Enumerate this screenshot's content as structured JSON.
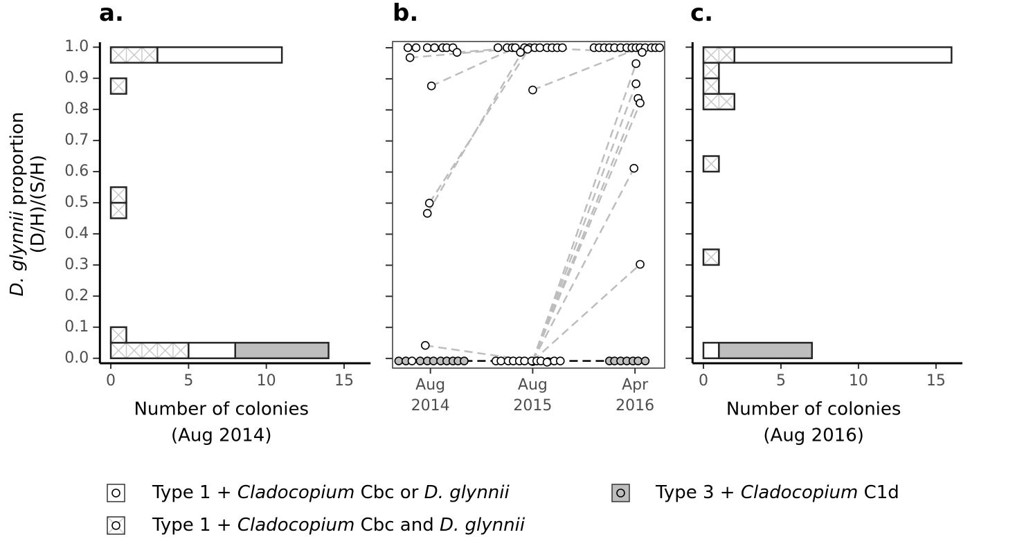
{
  "chart_data": [
    {
      "type": "stacked-histogram",
      "orientation": "horizontal",
      "panel_label": "a.",
      "y_label": [
        [
          {
            "text": "D. glynnii",
            "italic": true
          },
          {
            "text": " proportion"
          }
        ],
        [
          {
            "text": "(D/H)/(S/H)"
          }
        ]
      ],
      "x_label": [
        "Number of colonies",
        "(Aug 2014)"
      ],
      "bins": [
        0,
        0.05,
        0.1,
        0.15,
        0.2,
        0.25,
        0.3,
        0.35,
        0.4,
        0.45,
        0.5,
        0.55,
        0.6,
        0.65,
        0.7,
        0.75,
        0.8,
        0.85,
        0.9,
        0.95,
        1.0
      ],
      "series": [
        {
          "color": "#ffffff",
          "pattern": "crosshatch",
          "values": [
            5,
            1,
            0,
            0,
            0,
            0,
            0,
            0,
            0,
            1,
            1,
            0,
            0,
            0,
            0,
            0,
            0,
            1,
            0,
            3
          ]
        },
        {
          "color": "#ffffff",
          "values": [
            3,
            0,
            0,
            0,
            0,
            0,
            0,
            0,
            0,
            0,
            0,
            0,
            0,
            0,
            0,
            0,
            0,
            0,
            0,
            8
          ]
        },
        {
          "color": "#bebebe",
          "values": [
            6,
            0,
            0,
            0,
            0,
            0,
            0,
            0,
            0,
            0,
            0,
            0,
            0,
            0,
            0,
            0,
            0,
            0,
            0,
            0
          ]
        }
      ],
      "xlim": [
        -0.7,
        16.7
      ],
      "xticks": [
        0,
        5,
        10,
        15
      ],
      "ylim": [
        -0.016,
        1.016
      ],
      "yticks": [
        {
          "value": 0,
          "label": "0.0"
        },
        {
          "value": 0.1,
          "label": "0.1"
        },
        {
          "value": 0.2,
          "label": "0.2"
        },
        {
          "value": 0.3,
          "label": "0.3"
        },
        {
          "value": 0.4,
          "label": "0.4"
        },
        {
          "value": 0.5,
          "label": "0.5"
        },
        {
          "value": 0.6,
          "label": "0.6"
        },
        {
          "value": 0.7,
          "label": "0.7"
        },
        {
          "value": 0.8,
          "label": "0.8"
        },
        {
          "value": 0.9,
          "label": "0.9"
        },
        {
          "value": 1.0,
          "label": "1.0"
        }
      ]
    },
    {
      "type": "scatter",
      "panel_label": "b.",
      "xlim": [
        -0.37,
        2.29
      ],
      "xticks": [
        {
          "value": 0,
          "label": [
            "Aug",
            "2014"
          ]
        },
        {
          "value": 1,
          "label": [
            "Aug",
            "2015"
          ]
        },
        {
          "value": 2,
          "label": [
            "Apr",
            "2016"
          ]
        }
      ],
      "ylim": [
        -0.031,
        1.02
      ],
      "yticks": [
        0,
        0.1,
        0.2,
        0.3,
        0.4,
        0.5,
        0.6,
        0.7,
        0.8,
        0.9,
        1.0
      ],
      "connections": [
        {
          "color": "#bdbdbd",
          "x": [
            0.01,
            0.83
          ],
          "values": [
            0.877,
            1.0
          ]
        },
        {
          "color": "#bdbdbd",
          "x": [
            -0.03,
            0.92
          ],
          "values": [
            0.467,
            1.0
          ]
        },
        {
          "color": "#bdbdbd",
          "x": [
            -0.01,
            0.97
          ],
          "values": [
            0.5,
            1.0
          ]
        },
        {
          "color": "#bdbdbd",
          "x": [
            -0.2,
            0.92
          ],
          "values": [
            0.968,
            1.0
          ]
        },
        {
          "color": "#bdbdbd",
          "x": [
            0.26,
            0.83
          ],
          "values": [
            0.985,
            1.0
          ]
        },
        {
          "color": "#bdbdbd",
          "x": [
            -0.05,
            1.0
          ],
          "values": [
            0.042,
            -0.008
          ]
        },
        {
          "color": "#bdbdbd",
          "x": [
            1.0,
            2.05
          ],
          "values": [
            0.864,
            1.0
          ]
        },
        {
          "color": "#bdbdbd",
          "x": [
            1.0,
            2.01
          ],
          "values": [
            -0.008,
            0.949
          ]
        },
        {
          "color": "#bdbdbd",
          "x": [
            1.0,
            2.01
          ],
          "values": [
            -0.008,
            0.884
          ]
        },
        {
          "color": "#bdbdbd",
          "x": [
            1.0,
            2.03
          ],
          "values": [
            -0.008,
            0.837
          ]
        },
        {
          "color": "#bdbdbd",
          "x": [
            1.0,
            2.05
          ],
          "values": [
            -0.008,
            0.822
          ]
        },
        {
          "color": "#bdbdbd",
          "x": [
            1.0,
            1.99
          ],
          "values": [
            -0.008,
            0.612
          ]
        },
        {
          "color": "#bdbdbd",
          "x": [
            1.0,
            2.05
          ],
          "values": [
            -0.008,
            0.303
          ]
        },
        {
          "color": "#bdbdbd",
          "x": [
            1.0,
            2.07
          ],
          "values": [
            1.0,
            0.985
          ]
        },
        {
          "color": "#000000",
          "x": [
            0.33,
            1.75
          ],
          "values": [
            -0.008,
            -0.008
          ]
        }
      ],
      "series": [
        {
          "color": "#bebebe",
          "x": [
            -0.31,
            -0.24,
            -0.1,
            -0.03,
            0.03,
            0.1,
            0.16,
            0.22,
            0.27,
            0.33,
            1.0,
            1.15,
            1.75,
            1.8,
            1.86,
            1.92,
            1.98,
            2.03,
            2.1
          ],
          "values": [
            -0.008,
            -0.008,
            -0.008,
            -0.008,
            -0.008,
            -0.008,
            -0.008,
            -0.008,
            -0.008,
            -0.008,
            -0.01,
            -0.01,
            -0.008,
            -0.008,
            -0.008,
            -0.008,
            -0.008,
            -0.008,
            -0.008
          ]
        },
        {
          "color": "#ffffff",
          "x": [
            -0.22,
            -0.14,
            -0.03,
            0.04,
            0.12,
            0.16,
            0.22,
            0.26,
            -0.2,
            0.01,
            -0.01,
            -0.03,
            -0.05,
            -0.18,
            0.66,
            0.75,
            0.8,
            0.83,
            0.92,
            0.97,
            1.02,
            1.07,
            1.14,
            1.19,
            1.24,
            1.29,
            0.88,
            0.95,
            1.0,
            0.64,
            0.69,
            0.76,
            0.81,
            0.87,
            0.92,
            0.99,
            1.04,
            1.08,
            1.21,
            1.27,
            1.14,
            1.6,
            1.65,
            1.7,
            1.75,
            1.8,
            1.86,
            1.92,
            1.97,
            2.01,
            2.05,
            2.1,
            2.16,
            2.2,
            2.24,
            2.07,
            2.01,
            2.01,
            2.03,
            2.05,
            1.99,
            2.05
          ],
          "values": [
            1.0,
            1.0,
            1.0,
            1.0,
            1.0,
            1.0,
            1.0,
            0.985,
            0.968,
            0.877,
            0.5,
            0.467,
            0.042,
            -0.008,
            1.0,
            1.0,
            1.0,
            1.0,
            1.0,
            1.0,
            1.0,
            1.0,
            1.0,
            1.0,
            1.0,
            1.0,
            0.985,
            0.995,
            0.864,
            -0.008,
            -0.008,
            -0.008,
            -0.008,
            -0.008,
            -0.008,
            -0.008,
            -0.008,
            -0.008,
            -0.008,
            -0.008,
            -0.012,
            1.0,
            1.0,
            1.0,
            1.0,
            1.0,
            1.0,
            1.0,
            1.0,
            1.0,
            1.0,
            1.0,
            1.0,
            1.0,
            1.0,
            0.985,
            0.949,
            0.884,
            0.837,
            0.822,
            0.612,
            0.303
          ]
        }
      ]
    },
    {
      "type": "stacked-histogram",
      "orientation": "horizontal",
      "panel_label": "c.",
      "x_label": [
        "Number of colonies",
        "(Aug 2016)"
      ],
      "bins": [
        0,
        0.05,
        0.1,
        0.15,
        0.2,
        0.25,
        0.3,
        0.35,
        0.4,
        0.45,
        0.5,
        0.55,
        0.6,
        0.65,
        0.7,
        0.75,
        0.8,
        0.85,
        0.9,
        0.95,
        1.0
      ],
      "series": [
        {
          "color": "#ffffff",
          "pattern": "crosshatch",
          "values": [
            0,
            0,
            0,
            0,
            0,
            0,
            1,
            0,
            0,
            0,
            0,
            0,
            1,
            0,
            0,
            0,
            2,
            1,
            1,
            2
          ]
        },
        {
          "color": "#ffffff",
          "values": [
            1,
            0,
            0,
            0,
            0,
            0,
            0,
            0,
            0,
            0,
            0,
            0,
            0,
            0,
            0,
            0,
            0,
            0,
            0,
            14
          ]
        },
        {
          "color": "#bebebe",
          "values": [
            6,
            0,
            0,
            0,
            0,
            0,
            0,
            0,
            0,
            0,
            0,
            0,
            0,
            0,
            0,
            0,
            0,
            0,
            0,
            0
          ]
        }
      ],
      "xlim": [
        -0.7,
        16.7
      ],
      "xticks": [
        0,
        5,
        10,
        15
      ],
      "ylim": [
        -0.016,
        1.016
      ],
      "yticks": [
        0,
        0.1,
        0.2,
        0.3,
        0.4,
        0.5,
        0.6,
        0.7,
        0.8,
        0.9,
        1.0
      ]
    }
  ],
  "legend": [
    {
      "color": "#ffffff",
      "marker_color": "#ffffff",
      "runs": [
        {
          "text": "Type 1 + "
        },
        {
          "text": "Cladocopium",
          "italic": true
        },
        {
          "text": " Cbc or "
        },
        {
          "text": "D. glynnii",
          "italic": true
        }
      ]
    },
    {
      "color": "#ffffff",
      "pattern": "crosshatch",
      "marker_color": "#ffffff",
      "runs": [
        {
          "text": "Type 1 + "
        },
        {
          "text": "Cladocopium",
          "italic": true
        },
        {
          "text": " Cbc and "
        },
        {
          "text": "D. glynnii",
          "italic": true
        }
      ]
    },
    {
      "color": "#bebebe",
      "marker_color": "#bebebe",
      "runs": [
        {
          "text": "Type 3 + "
        },
        {
          "text": "Cladocopium",
          "italic": true
        },
        {
          "text": " C1d"
        }
      ]
    }
  ]
}
